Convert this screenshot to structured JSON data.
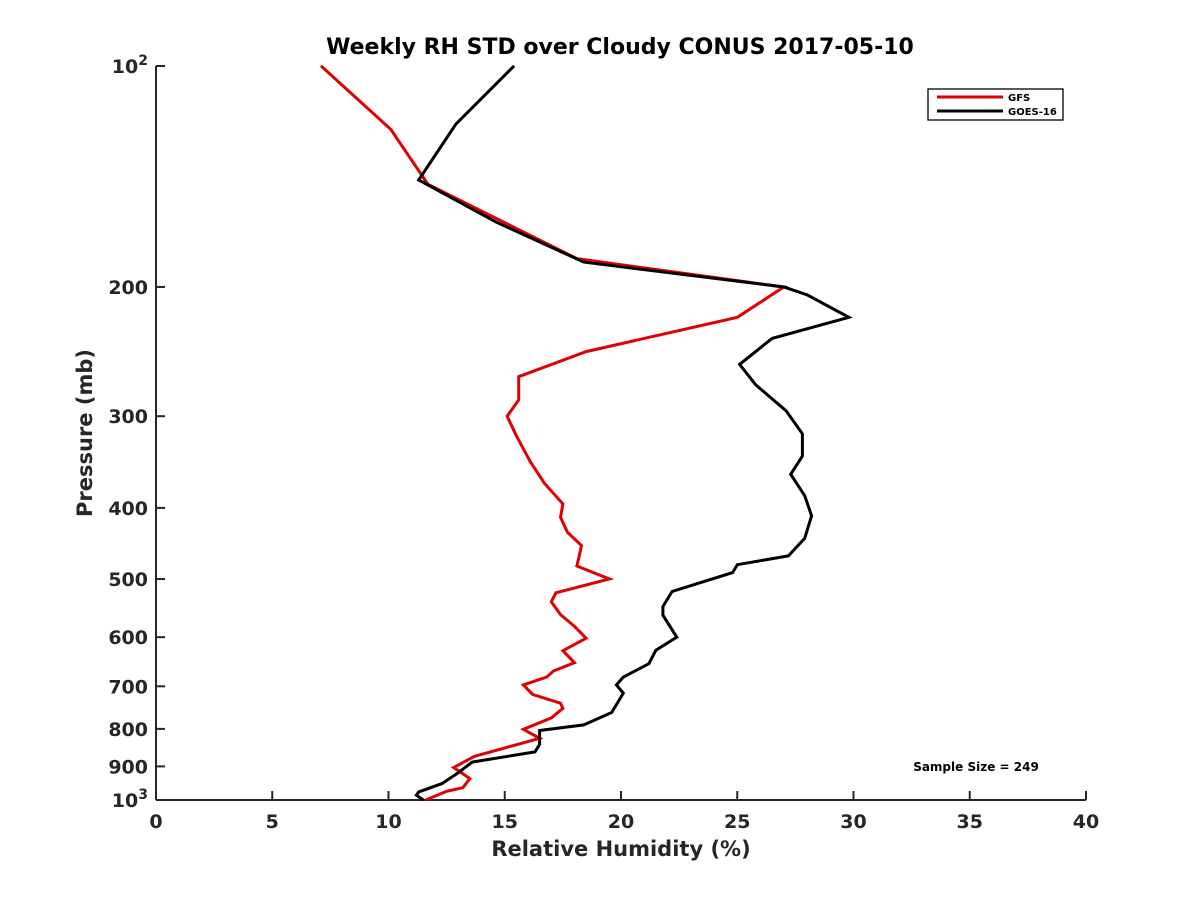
{
  "chart_data": {
    "type": "line",
    "title": "Weekly RH STD over Cloudy CONUS 2017-05-10",
    "xlabel": "Relative Humidity (%)",
    "ylabel": "Pressure (mb)",
    "xlim": [
      0,
      40
    ],
    "ylim": [
      100,
      1000
    ],
    "yscale": "log",
    "y_reversed": true,
    "grid": false,
    "legend_position": "top-right",
    "x_ticks": [
      0,
      5,
      10,
      15,
      20,
      25,
      30,
      35,
      40
    ],
    "x_tick_labels": [
      "0",
      "5",
      "10",
      "15",
      "20",
      "25",
      "30",
      "35",
      "40"
    ],
    "y_ticks": [
      {
        "value": 100,
        "base": "10",
        "exp": "2"
      },
      {
        "value": 200,
        "label": "200"
      },
      {
        "value": 300,
        "label": "300"
      },
      {
        "value": 400,
        "label": "400"
      },
      {
        "value": 500,
        "label": "500"
      },
      {
        "value": 600,
        "label": "600"
      },
      {
        "value": 700,
        "label": "700"
      },
      {
        "value": 800,
        "label": "800"
      },
      {
        "value": 900,
        "label": "900"
      },
      {
        "value": 1000,
        "base": "10",
        "exp": "3"
      }
    ],
    "annotation": "Sample Size = 249",
    "series": [
      {
        "name": "GFS",
        "color": "#e00000",
        "points": [
          [
            7.1,
            100
          ],
          [
            10.1,
            122
          ],
          [
            11.7,
            145
          ],
          [
            18.1,
            183
          ],
          [
            27.0,
            200
          ],
          [
            25.0,
            220
          ],
          [
            18.5,
            245
          ],
          [
            15.6,
            265
          ],
          [
            15.6,
            285
          ],
          [
            15.1,
            300
          ],
          [
            15.5,
            319
          ],
          [
            16.1,
            346
          ],
          [
            16.7,
            370
          ],
          [
            17.5,
            395
          ],
          [
            17.4,
            412
          ],
          [
            17.7,
            432
          ],
          [
            18.3,
            450
          ],
          [
            18.2,
            466
          ],
          [
            18.1,
            480
          ],
          [
            19.5,
            500
          ],
          [
            17.2,
            522
          ],
          [
            17.0,
            537
          ],
          [
            17.4,
            559
          ],
          [
            18.0,
            580
          ],
          [
            18.5,
            602
          ],
          [
            17.5,
            626
          ],
          [
            18.0,
            650
          ],
          [
            17.1,
            667
          ],
          [
            16.8,
            680
          ],
          [
            15.8,
            697
          ],
          [
            16.2,
            718
          ],
          [
            17.4,
            738
          ],
          [
            17.5,
            750
          ],
          [
            17.0,
            773
          ],
          [
            15.8,
            801
          ],
          [
            16.5,
            824
          ],
          [
            13.7,
            872
          ],
          [
            12.8,
            903
          ],
          [
            13.5,
            935
          ],
          [
            13.2,
            962
          ],
          [
            12.5,
            973
          ],
          [
            11.6,
            1000
          ]
        ]
      },
      {
        "name": "GOES-16",
        "color": "#000000",
        "points": [
          [
            15.4,
            100
          ],
          [
            12.9,
            120
          ],
          [
            11.3,
            143
          ],
          [
            14.6,
            163
          ],
          [
            18.4,
            185
          ],
          [
            27.0,
            200
          ],
          [
            28.0,
            205
          ],
          [
            29.8,
            220
          ],
          [
            26.5,
            235
          ],
          [
            25.1,
            255
          ],
          [
            25.8,
            272
          ],
          [
            27.1,
            295
          ],
          [
            27.8,
            317
          ],
          [
            27.8,
            340
          ],
          [
            27.3,
            360
          ],
          [
            27.9,
            385
          ],
          [
            28.2,
            410
          ],
          [
            27.9,
            440
          ],
          [
            27.2,
            465
          ],
          [
            25.0,
            478
          ],
          [
            24.8,
            490
          ],
          [
            22.2,
            520
          ],
          [
            21.8,
            545
          ],
          [
            21.8,
            560
          ],
          [
            22.4,
            600
          ],
          [
            21.5,
            625
          ],
          [
            21.2,
            652
          ],
          [
            20.1,
            680
          ],
          [
            19.8,
            697
          ],
          [
            20.1,
            715
          ],
          [
            19.6,
            760
          ],
          [
            18.4,
            790
          ],
          [
            16.5,
            804
          ],
          [
            16.5,
            840
          ],
          [
            16.3,
            860
          ],
          [
            13.6,
            888
          ],
          [
            13.0,
            918
          ],
          [
            12.3,
            950
          ],
          [
            11.3,
            975
          ],
          [
            11.2,
            985
          ],
          [
            11.5,
            1000
          ]
        ]
      }
    ]
  }
}
